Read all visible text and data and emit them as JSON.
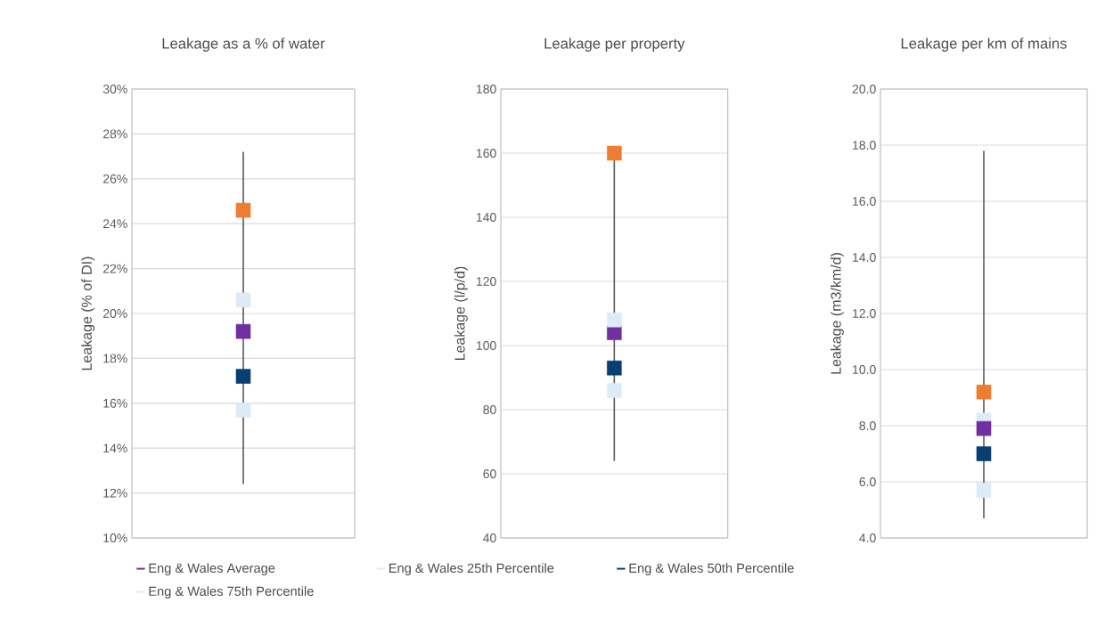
{
  "chart_data": [
    {
      "type": "scatter",
      "title": "Leakage as a % of water",
      "ylabel": "Leakage (% of DI)",
      "categories": [
        null
      ],
      "marker": "square",
      "grid": "y",
      "legend": "bottom",
      "ylim": [
        10,
        30
      ],
      "yticks": [
        {
          "value": 10,
          "label": "10%"
        },
        {
          "value": 12,
          "label": "12%"
        },
        {
          "value": 14,
          "label": "14%"
        },
        {
          "value": 16,
          "label": "16%"
        },
        {
          "value": 18,
          "label": "18%"
        },
        {
          "value": 20,
          "label": "20%"
        },
        {
          "value": 22,
          "label": "22%"
        },
        {
          "value": 24,
          "label": "24%"
        },
        {
          "value": 26,
          "label": "26%"
        },
        {
          "value": 28,
          "label": "28%"
        },
        {
          "value": 30,
          "label": "30%"
        }
      ],
      "series": [
        {
          "color": "#ed7d31",
          "values": [
            24.6
          ],
          "errors": [
            [
              12.4,
              27.2
            ]
          ]
        },
        {
          "name": "Eng & Wales Average",
          "color": "#7030a0",
          "values": [
            19.2
          ]
        },
        {
          "name": "Eng & Wales 25th Percentile",
          "color": "#ddebf7",
          "values": [
            15.7
          ]
        },
        {
          "name": "Eng & Wales 50th Percentile",
          "color": "#073f72",
          "values": [
            17.2
          ]
        },
        {
          "name": "Eng & Wales 75th Percentile",
          "color": "#ddebf7",
          "values": [
            20.6
          ]
        }
      ]
    },
    {
      "type": "scatter",
      "title": "Leakage per property",
      "ylabel": "Leakage (l/p/d)",
      "categories": [
        null
      ],
      "marker": "square",
      "grid": "y",
      "ylim": [
        40,
        180
      ],
      "yticks": [
        40,
        60,
        80,
        100,
        120,
        140,
        160,
        180
      ],
      "series": [
        {
          "color": "#ed7d31",
          "values": [
            160
          ],
          "errors": [
            [
              64,
              160
            ]
          ]
        },
        {
          "color": "#7030a0",
          "values": [
            104
          ]
        },
        {
          "color": "#ddebf7",
          "values": [
            86
          ]
        },
        {
          "color": "#073f72",
          "values": [
            93
          ]
        },
        {
          "color": "#ddebf7",
          "values": [
            108
          ]
        }
      ]
    },
    {
      "type": "scatter",
      "title": "Leakage per km of mains",
      "ylabel": "Leakage (m3/km/d)",
      "categories": [
        null
      ],
      "marker": "square",
      "grid": "y",
      "ylim": [
        4,
        20
      ],
      "yticks": [
        {
          "value": 4,
          "label": "4.0"
        },
        {
          "value": 6,
          "label": "6.0"
        },
        {
          "value": 8,
          "label": "8.0"
        },
        {
          "value": 10,
          "label": "10.0"
        },
        {
          "value": 12,
          "label": "12.0"
        },
        {
          "value": 14,
          "label": "14.0"
        },
        {
          "value": 16,
          "label": "16.0"
        },
        {
          "value": 18,
          "label": "18.0"
        },
        {
          "value": 20,
          "label": "20.0"
        }
      ],
      "series": [
        {
          "color": "#ed7d31",
          "values": [
            9.2
          ],
          "errors": [
            [
              4.7,
              17.8
            ]
          ]
        },
        {
          "color": "#ddebf7",
          "values": [
            5.7
          ]
        },
        {
          "color": "#073f72",
          "values": [
            7.0
          ]
        },
        {
          "color": "#ddebf7",
          "values": [
            8.2
          ]
        },
        {
          "color": "#7030a0",
          "values": [
            7.9
          ]
        }
      ]
    }
  ]
}
